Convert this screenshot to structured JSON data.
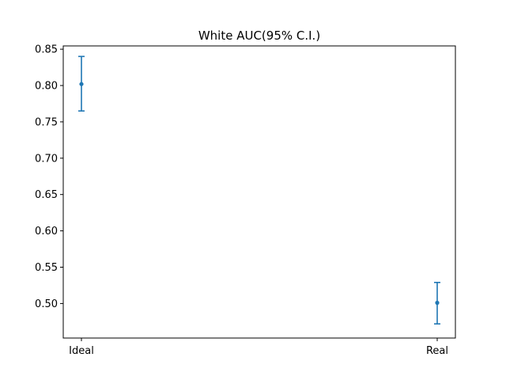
{
  "chart_data": {
    "type": "scatter",
    "title": "White AUC(95% C.I.)",
    "xlabel": "",
    "ylabel": "",
    "categories": [
      "Ideal",
      "Real"
    ],
    "points": [
      {
        "category": "Ideal",
        "value": 0.802,
        "lower": 0.765,
        "upper": 0.84
      },
      {
        "category": "Real",
        "value": 0.501,
        "lower": 0.472,
        "upper": 0.529
      }
    ],
    "ylim": [
      0.4525,
      0.8545
    ],
    "yticks": [
      0.5,
      0.55,
      0.6,
      0.65,
      0.7,
      0.75,
      0.8,
      0.85
    ],
    "ytick_labels": [
      "0.50",
      "0.55",
      "0.60",
      "0.65",
      "0.70",
      "0.75",
      "0.80",
      "0.85"
    ],
    "grid": false,
    "color": "#1f77b4"
  }
}
